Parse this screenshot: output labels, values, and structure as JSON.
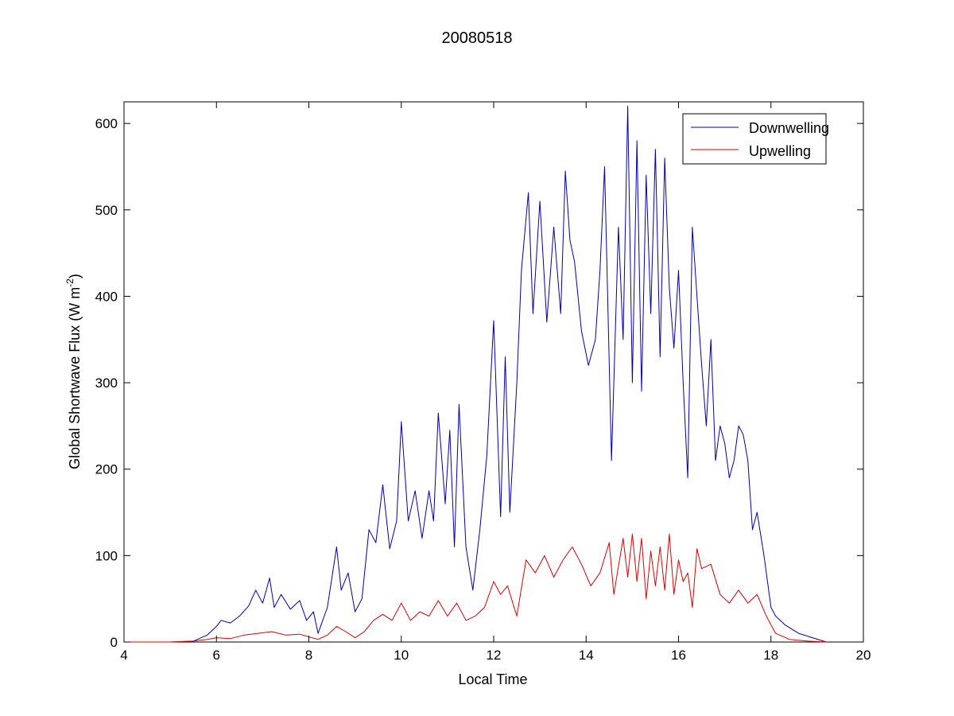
{
  "chart_data": {
    "type": "line",
    "title": "20080518",
    "xlabel": "Local Time",
    "ylabel": {
      "text": "Global Shortwave Flux (W m",
      "superscript": "-2",
      "suffix": ")"
    },
    "xlim": [
      4,
      20
    ],
    "ylim": [
      0,
      625
    ],
    "xticks": [
      4,
      6,
      8,
      10,
      12,
      14,
      16,
      18,
      20
    ],
    "yticks": [
      0,
      100,
      200,
      300,
      400,
      500,
      600
    ],
    "grid": false,
    "legend_position": "top-right",
    "series": [
      {
        "name": "Downwelling",
        "color": "#0000aa",
        "x": [
          4.0,
          5.0,
          5.5,
          5.8,
          6.0,
          6.1,
          6.3,
          6.5,
          6.7,
          6.85,
          7.0,
          7.15,
          7.25,
          7.4,
          7.6,
          7.8,
          7.95,
          8.1,
          8.2,
          8.4,
          8.6,
          8.7,
          8.85,
          9.0,
          9.15,
          9.3,
          9.45,
          9.6,
          9.75,
          9.9,
          10.0,
          10.15,
          10.3,
          10.45,
          10.6,
          10.7,
          10.8,
          10.95,
          11.05,
          11.15,
          11.25,
          11.4,
          11.55,
          11.7,
          11.85,
          12.0,
          12.15,
          12.25,
          12.35,
          12.5,
          12.6,
          12.75,
          12.85,
          13.0,
          13.15,
          13.3,
          13.45,
          13.55,
          13.65,
          13.75,
          13.9,
          14.05,
          14.2,
          14.3,
          14.4,
          14.55,
          14.7,
          14.8,
          14.9,
          15.0,
          15.1,
          15.2,
          15.3,
          15.4,
          15.5,
          15.6,
          15.7,
          15.8,
          15.9,
          16.0,
          16.1,
          16.2,
          16.3,
          16.4,
          16.5,
          16.6,
          16.7,
          16.8,
          16.9,
          17.0,
          17.1,
          17.2,
          17.3,
          17.4,
          17.5,
          17.6,
          17.7,
          17.85,
          18.0,
          18.1,
          18.3,
          18.6,
          18.9,
          19.2
        ],
        "y": [
          0,
          0,
          1,
          8,
          18,
          25,
          22,
          30,
          42,
          60,
          45,
          74,
          40,
          55,
          38,
          48,
          25,
          35,
          10,
          40,
          110,
          60,
          80,
          35,
          50,
          130,
          115,
          182,
          108,
          140,
          255,
          140,
          175,
          120,
          175,
          140,
          265,
          160,
          245,
          110,
          275,
          110,
          60,
          130,
          215,
          372,
          145,
          330,
          150,
          300,
          430,
          520,
          380,
          510,
          370,
          480,
          380,
          545,
          465,
          440,
          360,
          320,
          350,
          430,
          550,
          210,
          480,
          350,
          620,
          300,
          580,
          290,
          540,
          380,
          570,
          330,
          560,
          410,
          340,
          430,
          300,
          190,
          480,
          400,
          320,
          250,
          350,
          210,
          250,
          230,
          190,
          210,
          250,
          240,
          210,
          130,
          150,
          100,
          40,
          30,
          20,
          10,
          5,
          0
        ]
      },
      {
        "name": "Upwelling",
        "color": "#dd0000",
        "x": [
          4.0,
          5.0,
          5.5,
          5.8,
          6.0,
          6.3,
          6.6,
          6.9,
          7.2,
          7.5,
          7.8,
          8.0,
          8.2,
          8.4,
          8.6,
          8.8,
          9.0,
          9.2,
          9.4,
          9.6,
          9.8,
          10.0,
          10.2,
          10.4,
          10.6,
          10.8,
          11.0,
          11.2,
          11.4,
          11.6,
          11.8,
          12.0,
          12.15,
          12.3,
          12.5,
          12.7,
          12.9,
          13.1,
          13.3,
          13.5,
          13.7,
          13.9,
          14.1,
          14.3,
          14.5,
          14.6,
          14.8,
          14.9,
          15.0,
          15.1,
          15.2,
          15.3,
          15.4,
          15.5,
          15.6,
          15.7,
          15.8,
          15.9,
          16.0,
          16.1,
          16.2,
          16.3,
          16.4,
          16.5,
          16.7,
          16.9,
          17.1,
          17.3,
          17.5,
          17.7,
          17.9,
          18.1,
          18.4,
          18.8,
          19.2
        ],
        "y": [
          0,
          0,
          1,
          3,
          5,
          4,
          8,
          10,
          12,
          8,
          9,
          6,
          3,
          8,
          18,
          12,
          5,
          12,
          25,
          32,
          25,
          45,
          25,
          35,
          30,
          48,
          30,
          45,
          25,
          30,
          40,
          70,
          55,
          65,
          30,
          95,
          80,
          100,
          75,
          95,
          110,
          90,
          65,
          80,
          115,
          55,
          120,
          75,
          125,
          70,
          120,
          50,
          105,
          65,
          110,
          60,
          125,
          55,
          95,
          70,
          80,
          40,
          108,
          85,
          90,
          55,
          45,
          60,
          45,
          55,
          30,
          10,
          3,
          1,
          0
        ]
      }
    ]
  }
}
